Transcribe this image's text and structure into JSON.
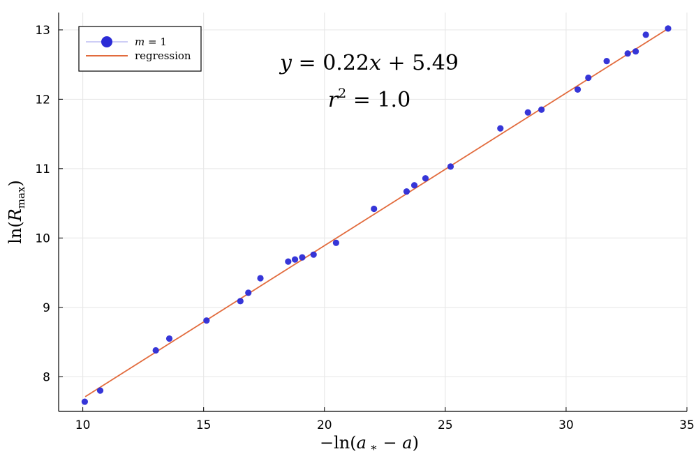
{
  "chart_data": {
    "type": "scatter",
    "x_axis": {
      "label": "−ln(a* − a)",
      "range": [
        9.0,
        35.0
      ],
      "ticks": [
        10,
        15,
        20,
        25,
        30,
        35
      ]
    },
    "y_axis": {
      "label": "ln(R_max)",
      "range": [
        7.5,
        13.25
      ],
      "ticks": [
        8,
        9,
        10,
        11,
        12,
        13
      ]
    },
    "grid": true,
    "legend": {
      "placement": "top-left",
      "entries": [
        {
          "label": "m = 1",
          "kind": "marker",
          "color": "#2b2bd6"
        },
        {
          "label": "regression",
          "kind": "line",
          "color": "#e26b3d"
        }
      ]
    },
    "annotations": {
      "equation": "y = 0.22x + 5.49",
      "r_squared": "r² = 1.0"
    },
    "regression": {
      "slope": 0.22,
      "intercept": 5.49,
      "x_range": [
        10.1,
        34.2
      ],
      "color": "#e26b3d"
    },
    "series": [
      {
        "name": "m = 1",
        "color": "#2b2bd6",
        "points": [
          [
            10.08,
            7.64
          ],
          [
            10.72,
            7.8
          ],
          [
            13.02,
            8.38
          ],
          [
            13.58,
            8.55
          ],
          [
            15.12,
            8.81
          ],
          [
            16.52,
            9.09
          ],
          [
            16.85,
            9.21
          ],
          [
            17.35,
            9.42
          ],
          [
            18.5,
            9.66
          ],
          [
            18.78,
            9.69
          ],
          [
            19.08,
            9.72
          ],
          [
            19.55,
            9.76
          ],
          [
            20.48,
            9.93
          ],
          [
            22.05,
            10.42
          ],
          [
            23.4,
            10.67
          ],
          [
            23.72,
            10.76
          ],
          [
            24.18,
            10.86
          ],
          [
            25.22,
            11.03
          ],
          [
            27.28,
            11.58
          ],
          [
            28.42,
            11.81
          ],
          [
            28.98,
            11.85
          ],
          [
            30.48,
            12.14
          ],
          [
            30.92,
            12.31
          ],
          [
            31.68,
            12.55
          ],
          [
            32.55,
            12.66
          ],
          [
            32.88,
            12.69
          ],
          [
            33.3,
            12.93
          ],
          [
            34.22,
            13.02
          ]
        ]
      }
    ]
  }
}
